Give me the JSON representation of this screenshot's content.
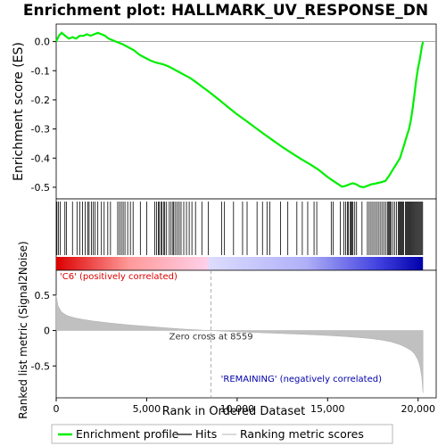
{
  "chart_data": {
    "type": "line",
    "title": "Enrichment plot: HALLMARK_UV_RESPONSE_DN",
    "top_panel": {
      "ylabel": "Enrichment score (ES)",
      "ylim": [
        -0.54,
        0.06
      ],
      "yticks": [
        0.0,
        -0.1,
        -0.2,
        -0.3,
        -0.4,
        -0.5
      ],
      "ytick_labels": [
        "0.0",
        "-0.1",
        "-0.2",
        "-0.3",
        "-0.4",
        "-0.5"
      ],
      "series": [
        {
          "name": "Enrichment profile",
          "color": "#00ee00",
          "x": [
            0,
            150,
            300,
            500,
            700,
            900,
            1100,
            1300,
            1500,
            1700,
            1900,
            2100,
            2300,
            2500,
            2700,
            2900,
            3100,
            3300,
            3500,
            3700,
            4000,
            4300,
            4600,
            4900,
            5200,
            5500,
            5700,
            5900,
            6200,
            6500,
            6800,
            7100,
            7400,
            7700,
            8000,
            8500,
            9000,
            9500,
            10000,
            10500,
            11000,
            11500,
            12000,
            12500,
            13000,
            13500,
            14000,
            14500,
            15000,
            15300,
            15600,
            15800,
            16000,
            16200,
            16400,
            16600,
            16800,
            17000,
            17200,
            17400,
            17600,
            17800,
            18000,
            18200,
            18400,
            18600,
            18800,
            19000,
            19100,
            19200,
            19300,
            19400,
            19500,
            19600,
            19700,
            19800,
            19900,
            20000,
            20100,
            20200,
            20270
          ],
          "y": [
            0.0,
            0.02,
            0.03,
            0.02,
            0.01,
            0.015,
            0.01,
            0.02,
            0.02,
            0.025,
            0.02,
            0.025,
            0.03,
            0.025,
            0.02,
            0.01,
            0.005,
            0.0,
            -0.005,
            -0.01,
            -0.02,
            -0.03,
            -0.045,
            -0.055,
            -0.065,
            -0.072,
            -0.075,
            -0.078,
            -0.085,
            -0.095,
            -0.105,
            -0.115,
            -0.125,
            -0.138,
            -0.152,
            -0.175,
            -0.2,
            -0.225,
            -0.25,
            -0.272,
            -0.295,
            -0.318,
            -0.34,
            -0.362,
            -0.382,
            -0.402,
            -0.42,
            -0.44,
            -0.465,
            -0.478,
            -0.49,
            -0.498,
            -0.495,
            -0.49,
            -0.486,
            -0.49,
            -0.498,
            -0.5,
            -0.495,
            -0.49,
            -0.488,
            -0.485,
            -0.482,
            -0.478,
            -0.46,
            -0.44,
            -0.42,
            -0.4,
            -0.38,
            -0.36,
            -0.34,
            -0.32,
            -0.3,
            -0.27,
            -0.23,
            -0.18,
            -0.13,
            -0.09,
            -0.06,
            -0.02,
            0.0
          ]
        }
      ]
    },
    "hits_panel": {
      "hit_positions": [
        40,
        120,
        220,
        480,
        560,
        900,
        1150,
        1300,
        1450,
        1600,
        1750,
        1820,
        1950,
        2050,
        2150,
        2300,
        2500,
        2650,
        2850,
        3000,
        3400,
        3500,
        3600,
        3700,
        3800,
        3950,
        4100,
        4250,
        4650,
        5000,
        5450,
        5550,
        5650,
        5700,
        5800,
        5850,
        5950,
        6000,
        6100,
        6250,
        6350,
        6450,
        6500,
        6600,
        6700,
        6800,
        6900,
        7050,
        7200,
        7350,
        7500,
        7700,
        8050,
        8400,
        9150,
        9300,
        9800,
        10300,
        10550,
        11100,
        11400,
        11650,
        11800,
        12400,
        12800,
        13300,
        13600,
        13900,
        14250,
        14400,
        15200,
        15300,
        15700,
        15900,
        16000,
        16100,
        16150,
        16250,
        16300,
        16350,
        16400,
        16500,
        16600,
        16900,
        17200,
        17300,
        17400,
        17500,
        17600,
        17700,
        17800,
        17900,
        18000,
        18100,
        18200,
        18300,
        18350,
        18400,
        18450,
        18500,
        18600,
        18700,
        18800,
        18900,
        18950,
        19000,
        19050,
        19100,
        19150,
        19200,
        19300,
        19350,
        19400,
        19450,
        19500,
        19550,
        19600,
        19650,
        19700,
        19750,
        19800,
        19850,
        19900,
        19950,
        20000,
        20050,
        20100,
        20150,
        20200,
        20250
      ]
    },
    "rank_panel": {
      "ylabel": "Ranked list metric (Signal2Noise)",
      "ylim": [
        -0.95,
        0.85
      ],
      "yticks": [
        0.5,
        0.0,
        -0.5
      ],
      "ytick_labels": [
        "0.5",
        "0",
        "-0.5"
      ],
      "metric_points": {
        "x": [
          0,
          100,
          300,
          600,
          1000,
          1500,
          2000,
          3000,
          4000,
          5000,
          6000,
          7000,
          8000,
          8559,
          9000,
          10000,
          11000,
          12000,
          13000,
          14000,
          15000,
          16000,
          17000,
          17500,
          18000,
          18500,
          19000,
          19300,
          19600,
          19800,
          20000,
          20100,
          20200,
          20270
        ],
        "y": [
          0.5,
          0.35,
          0.26,
          0.21,
          0.18,
          0.155,
          0.135,
          0.105,
          0.08,
          0.06,
          0.04,
          0.02,
          0.007,
          0.0,
          -0.006,
          -0.018,
          -0.028,
          -0.038,
          -0.048,
          -0.058,
          -0.07,
          -0.085,
          -0.105,
          -0.118,
          -0.135,
          -0.16,
          -0.2,
          -0.235,
          -0.28,
          -0.33,
          -0.42,
          -0.5,
          -0.65,
          -0.88
        ]
      },
      "zero_cross_label": "Zero cross at 8559",
      "zero_cross": 8559,
      "pos_label": "'C6' (positively correlated)",
      "neg_label": "'REMAINING' (negatively correlated)",
      "pos_color": "#dd0000",
      "neg_color": "#0000aa"
    },
    "xlabel": "Rank in Ordered Dataset",
    "xlim": [
      0,
      21000
    ],
    "xticks": [
      0,
      5000,
      10000,
      15000,
      20000
    ],
    "xtick_labels": [
      "0",
      "5,000",
      "10,000",
      "15,000",
      "20,000"
    ],
    "legend": [
      {
        "name": "Enrichment profile",
        "color": "#00ee00"
      },
      {
        "name": "Hits",
        "color": "#000000"
      },
      {
        "name": "Ranking metric scores",
        "color": "#c0c0c0"
      }
    ],
    "legend_position": "bottom"
  }
}
